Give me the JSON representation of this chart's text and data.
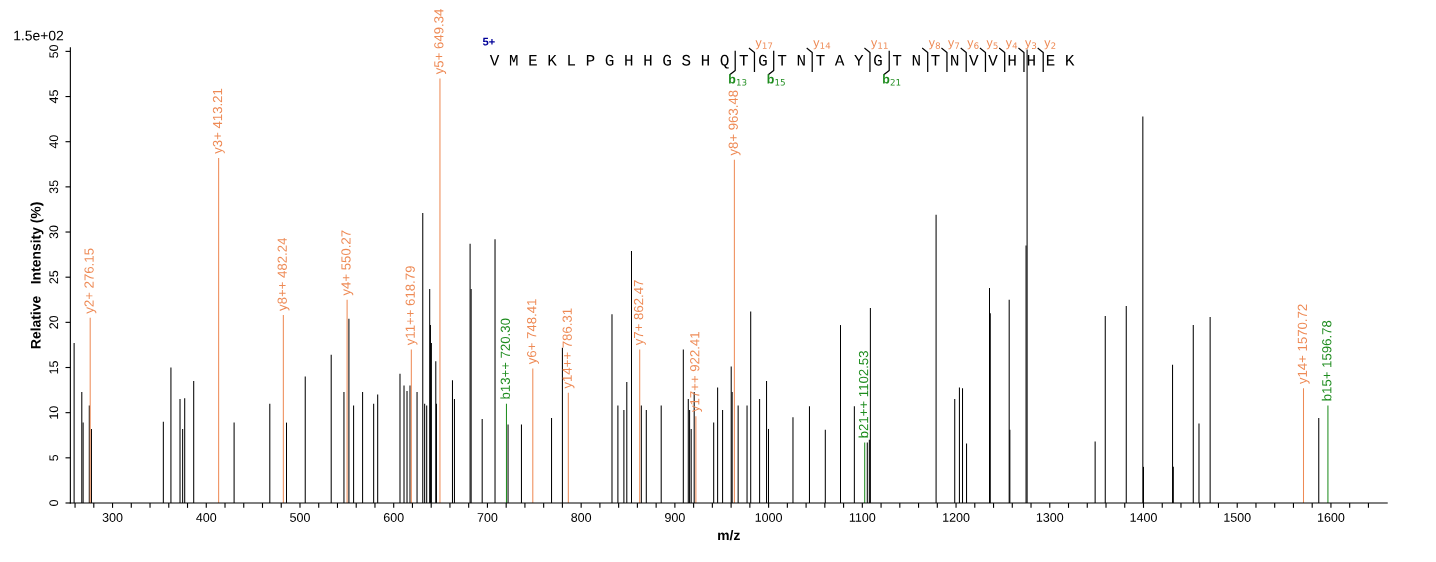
{
  "chart_data": {
    "type": "bar",
    "xlabel": "m/z",
    "ylabel": "Relative   Intensity (%)",
    "xlim": [
      255,
      1660
    ],
    "ylim": [
      0,
      50.4
    ],
    "xticks": [
      {
        "value": 260,
        "label": null
      },
      {
        "value": 280,
        "label": null
      },
      300,
      {
        "value": 320,
        "label": null
      },
      {
        "value": 340,
        "label": null
      },
      {
        "value": 360,
        "label": null
      },
      {
        "value": 380,
        "label": null
      },
      400,
      {
        "value": 420,
        "label": null
      },
      {
        "value": 440,
        "label": null
      },
      {
        "value": 460,
        "label": null
      },
      {
        "value": 480,
        "label": null
      },
      500,
      {
        "value": 520,
        "label": null
      },
      {
        "value": 540,
        "label": null
      },
      {
        "value": 560,
        "label": null
      },
      {
        "value": 580,
        "label": null
      },
      600,
      {
        "value": 620,
        "label": null
      },
      {
        "value": 640,
        "label": null
      },
      {
        "value": 660,
        "label": null
      },
      {
        "value": 680,
        "label": null
      },
      700,
      {
        "value": 720,
        "label": null
      },
      {
        "value": 740,
        "label": null
      },
      {
        "value": 760,
        "label": null
      },
      {
        "value": 780,
        "label": null
      },
      800,
      {
        "value": 820,
        "label": null
      },
      {
        "value": 840,
        "label": null
      },
      {
        "value": 860,
        "label": null
      },
      {
        "value": 880,
        "label": null
      },
      900,
      {
        "value": 920,
        "label": null
      },
      {
        "value": 940,
        "label": null
      },
      {
        "value": 960,
        "label": null
      },
      {
        "value": 980,
        "label": null
      },
      1000,
      {
        "value": 1020,
        "label": null
      },
      {
        "value": 1040,
        "label": null
      },
      {
        "value": 1060,
        "label": null
      },
      {
        "value": 1080,
        "label": null
      },
      1100,
      {
        "value": 1120,
        "label": null
      },
      {
        "value": 1140,
        "label": null
      },
      {
        "value": 1160,
        "label": null
      },
      {
        "value": 1180,
        "label": null
      },
      1200,
      {
        "value": 1220,
        "label": null
      },
      {
        "value": 1240,
        "label": null
      },
      {
        "value": 1260,
        "label": null
      },
      {
        "value": 1280,
        "label": null
      },
      1300,
      {
        "value": 1320,
        "label": null
      },
      {
        "value": 1340,
        "label": null
      },
      {
        "value": 1360,
        "label": null
      },
      {
        "value": 1380,
        "label": null
      },
      1400,
      {
        "value": 1420,
        "label": null
      },
      {
        "value": 1440,
        "label": null
      },
      {
        "value": 1460,
        "label": null
      },
      {
        "value": 1480,
        "label": null
      },
      1500,
      {
        "value": 1520,
        "label": null
      },
      {
        "value": 1540,
        "label": null
      },
      {
        "value": 1560,
        "label": null
      },
      {
        "value": 1580,
        "label": null
      },
      1600,
      {
        "value": 1620,
        "label": null
      },
      {
        "value": 1640,
        "label": null
      }
    ],
    "yticks": [
      0,
      5,
      10,
      15,
      20,
      25,
      30,
      35,
      40,
      45,
      50
    ],
    "grid": false,
    "legend": false,
    "series": [
      {
        "color": "#000000",
        "x": [
          259,
          267.2,
          268.6,
          275.2,
          277.5,
          354.2,
          362.3,
          372,
          374.8,
          377,
          386.6,
          429.7,
          467.8,
          485.6,
          505.6,
          533.3,
          546.9,
          552.2,
          557.2,
          566.8,
          578.6,
          582.9,
          606.7,
          611,
          614.2,
          617.4,
          624.9,
          631,
          633,
          635.2,
          638.4,
          639.2,
          640.2,
          644.9,
          645.6,
          662.7,
          664.8,
          681.5,
          682.6,
          694.4,
          708.1,
          722,
          736.3,
          768.4,
          780,
          832.9,
          839.2,
          845.6,
          848.7,
          853.7,
          864.2,
          869.5,
          885.4,
          909,
          914.3,
          915.7,
          917.4,
          920.6,
          941.4,
          945.6,
          950.9,
          960.1,
          961.1,
          967.5,
          977,
          980.9,
          990.4,
          997.8,
          999.9,
          1026,
          1043.6,
          1060.5,
          1076.7,
          1091.5,
          1105.3,
          1107.5,
          1108.6,
          1178.7,
          1198.6,
          1203.6,
          1206.9,
          1211.2,
          1235.7,
          1236.5,
          1256.7,
          1257.4,
          1274.7,
          1275.8,
          1348.4,
          1359.2,
          1381.6,
          1399.3,
          1400,
          1431,
          1431.8,
          1453.1,
          1459.2,
          1471.1,
          1587
        ],
        "values": [
          17.7,
          12.3,
          8.9,
          10.8,
          8.2,
          9.0,
          15.0,
          11.5,
          8.2,
          11.6,
          13.5,
          8.9,
          11.0,
          8.9,
          14.0,
          16.4,
          12.3,
          20.4,
          10.8,
          12.3,
          11.0,
          12.0,
          14.3,
          13.0,
          12.4,
          13.0,
          12.3,
          32.1,
          11.0,
          10.8,
          23.7,
          19.7,
          17.7,
          15.7,
          11.0,
          13.6,
          11.5,
          28.7,
          23.7,
          9.3,
          29.2,
          8.7,
          8.7,
          9.4,
          17.2,
          20.9,
          10.8,
          10.3,
          13.4,
          27.9,
          10.8,
          10.3,
          10.8,
          17.0,
          11.5,
          10.3,
          8.2,
          12.3,
          8.9,
          12.8,
          10.3,
          15.1,
          12.3,
          10.8,
          10.8,
          21.2,
          11.5,
          13.5,
          8.2,
          9.5,
          10.7,
          8.1,
          19.7,
          10.7,
          6.7,
          7.0,
          21.6,
          31.9,
          11.5,
          12.8,
          12.7,
          6.6,
          23.8,
          21.0,
          22.5,
          8.1,
          28.5,
          50.2,
          6.8,
          20.7,
          21.8,
          42.8,
          4.0,
          15.3,
          4.0,
          19.7,
          8.8,
          20.6,
          9.4
        ]
      },
      {
        "color": "#ee8a55",
        "x": [
          276.15,
          413.21,
          482.24,
          550.27,
          618.79,
          649.34,
          748.41,
          786.31,
          862.47,
          922.41,
          963.48,
          1570.72
        ],
        "values": [
          20.5,
          38.2,
          20.8,
          22.5,
          17.0,
          47.0,
          14.9,
          12.2,
          17.0,
          9.6,
          38.0,
          12.7
        ]
      },
      {
        "color": "#1e8c1e",
        "x": [
          720.3,
          1102.53,
          1596.78
        ],
        "values": [
          11.0,
          6.7,
          10.8
        ]
      }
    ],
    "annotations": [
      {
        "text": "y2+ 276.15",
        "x": 276.15,
        "y": 20.5
      },
      {
        "text": "y3+ 413.21",
        "x": 413.21,
        "y": 38.2
      },
      {
        "text": "y8++ 482.24",
        "x": 482.24,
        "y": 20.8
      },
      {
        "text": "y4+ 550.27",
        "x": 550.27,
        "y": 22.5
      },
      {
        "text": "y11++ 618.79",
        "x": 618.79,
        "y": 17.0
      },
      {
        "text": "y5+ 649.34",
        "x": 649.34,
        "y": 47.0
      },
      {
        "text": "b13++ 720.30",
        "x": 720.3,
        "y": 11.0
      },
      {
        "text": "y6+ 748.41",
        "x": 748.41,
        "y": 14.9
      },
      {
        "text": "y14++ 786.31",
        "x": 786.31,
        "y": 12.2
      },
      {
        "text": "y7+ 862.47",
        "x": 862.47,
        "y": 17.0
      },
      {
        "text": "y17++ 922.41",
        "x": 922.41,
        "y": 9.6
      },
      {
        "text": "y8+ 963.48",
        "x": 963.48,
        "y": 38.0
      },
      {
        "text": "b21++ 1102.53",
        "x": 1102.53,
        "y": 6.7
      },
      {
        "text": "y14+ 1570.72",
        "x": 1570.72,
        "y": 12.7
      },
      {
        "text": "b15+ 1596.78",
        "x": 1596.78,
        "y": 10.8
      },
      "1.5e+02",
      "5+",
      "V M E K L P G H H G S H Q T G T N T A Y G T N T N V V H H E K",
      "y$_{17}$",
      "y$_{14}$",
      "y$_{11}$",
      "y$_{8}$",
      "y$_{7}$",
      "y$_{6}$",
      "y$_{5}$",
      "y$_{4}$",
      "y$_{3}$",
      "y$_{2}$",
      "b$_{13}$",
      "b$_{15}$",
      "b$_{21}$"
    ]
  }
}
